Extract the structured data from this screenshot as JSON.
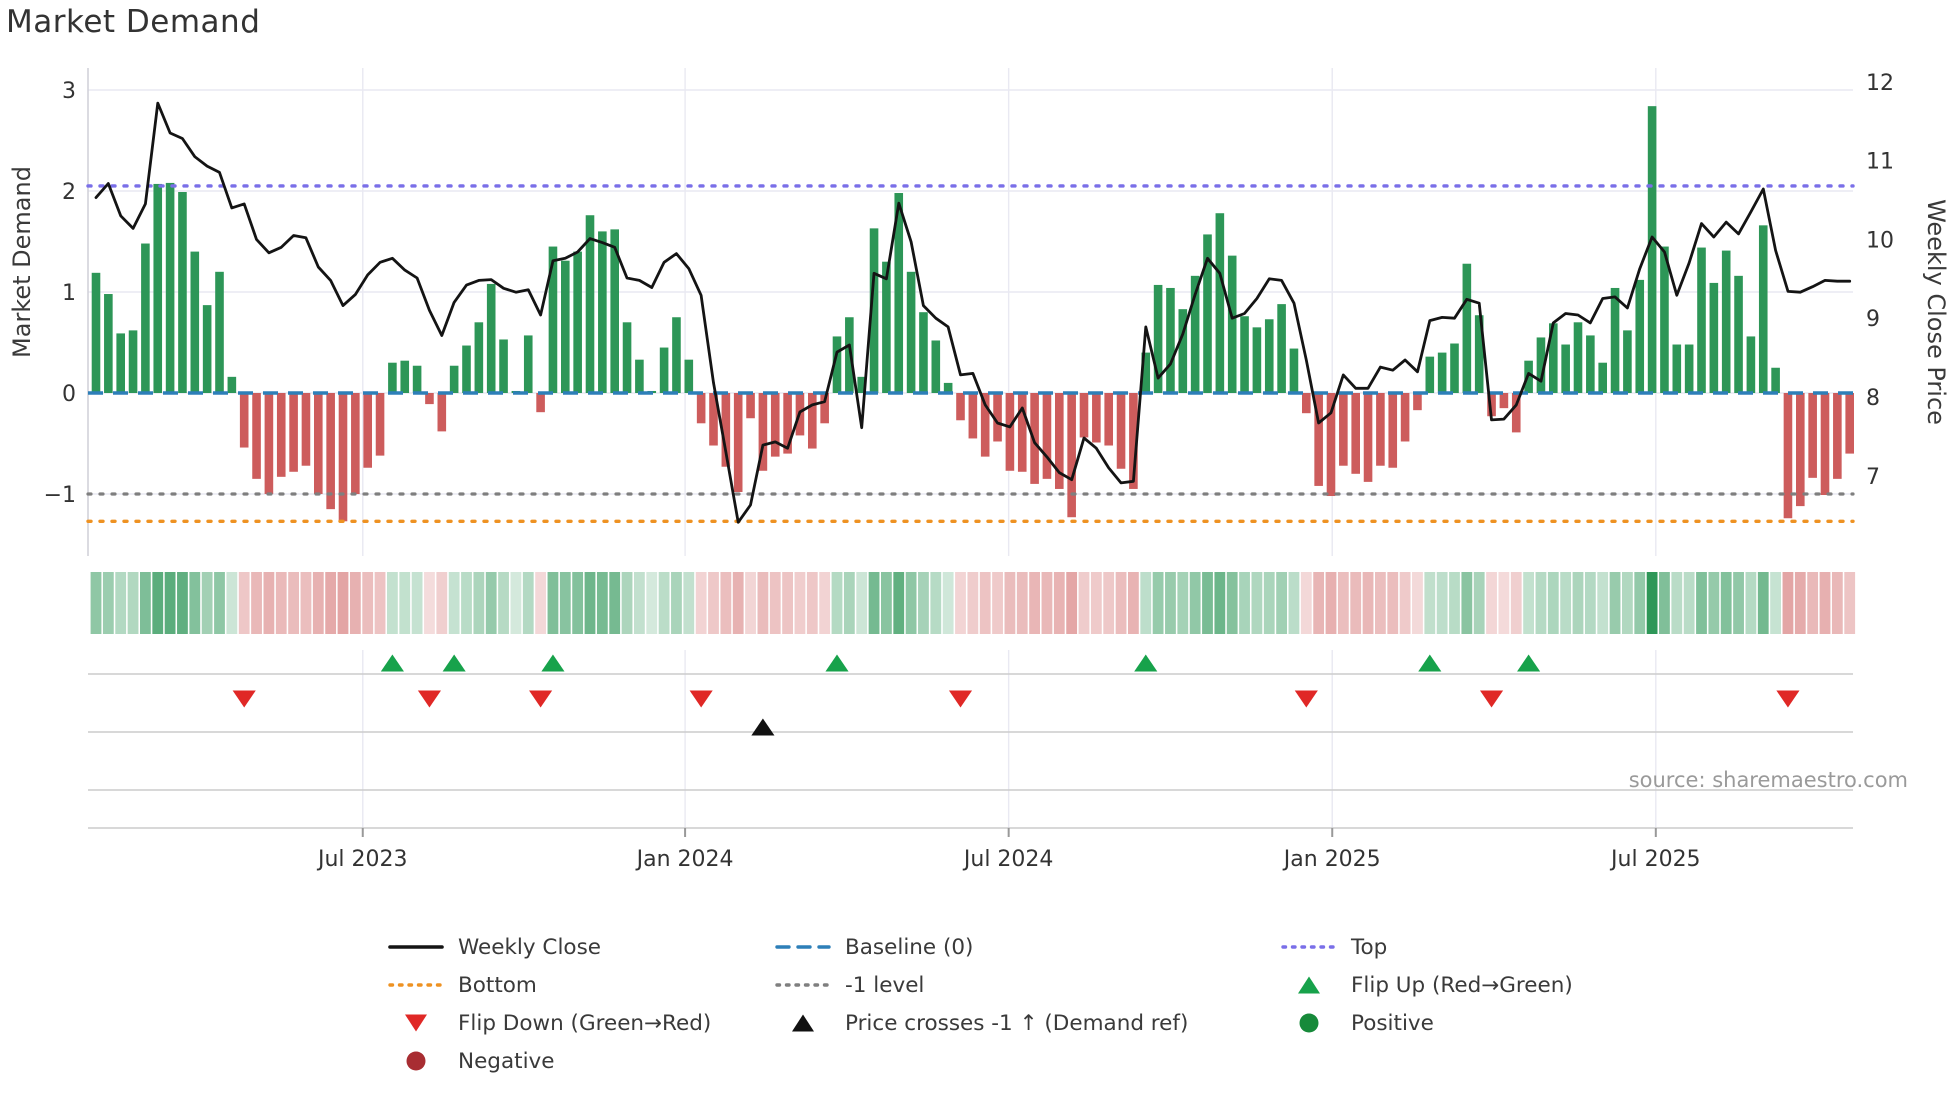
{
  "title": "Market Demand",
  "source": "source: sharemaestro.com",
  "left_axis": {
    "label": "Market Demand",
    "ticks": [
      "3",
      "2",
      "1",
      "0",
      "−1"
    ],
    "tick_values": [
      3,
      2,
      1,
      0,
      -1
    ]
  },
  "right_axis": {
    "label": "Weekly Close Price",
    "ticks": [
      "12",
      "11",
      "10",
      "9",
      "8",
      "7"
    ],
    "tick_values": [
      12,
      11,
      10,
      9,
      8,
      7
    ]
  },
  "x_axis": {
    "tick_labels": [
      "Jul 2023",
      "Jan 2024",
      "Jul 2024",
      "Jan 2025",
      "Jul 2025"
    ],
    "tick_weeks": [
      21.6,
      47.7,
      73.9,
      100.1,
      126.3
    ]
  },
  "colors": {
    "bar_positive": "#2d9657",
    "bar_negative": "#cd5c5c",
    "price_line": "#141414",
    "baseline": "#2d7fb8",
    "top": "#7a6fe8",
    "bottom": "#ee9222",
    "minus1": "#7f7f7f",
    "flip_up": "#17a24b",
    "flip_down": "#e02826",
    "cross": "#111111",
    "positive_dot": "#178a3a",
    "negative_dot": "#a82d32",
    "grid": "#e9e9f2",
    "spine": "#cfcfd7",
    "panel_line": "#cccccc",
    "text": "#333333",
    "muted": "#9a9a9a"
  },
  "chart_data": {
    "type": "bar+line",
    "title": "Market Demand",
    "ylabel_left": "Market Demand",
    "ylabel_right": "Weekly Close Price",
    "x_unit": "week",
    "n_weeks": 143,
    "ylim_demand": [
      -1.6,
      3.2
    ],
    "ylim_price": [
      6.0,
      12.2
    ],
    "baseline": 0,
    "top_level": 2.05,
    "bottom_level": -1.27,
    "minus1_level": -1,
    "grid": true,
    "legend_position": "bottom",
    "demand": [
      1.19,
      0.98,
      0.59,
      0.62,
      1.48,
      2.07,
      2.08,
      1.99,
      1.4,
      0.87,
      1.2,
      0.16,
      -0.54,
      -0.85,
      -1.0,
      -0.83,
      -0.78,
      -0.72,
      -1.0,
      -1.15,
      -1.27,
      -1.0,
      -0.74,
      -0.62,
      0.3,
      0.32,
      0.27,
      -0.11,
      -0.38,
      0.27,
      0.47,
      0.7,
      1.08,
      0.53,
      0.02,
      0.57,
      -0.19,
      1.45,
      1.31,
      1.4,
      1.76,
      1.6,
      1.62,
      0.7,
      0.33,
      0.02,
      0.45,
      0.75,
      0.33,
      -0.3,
      -0.52,
      -0.73,
      -0.98,
      -0.25,
      -0.77,
      -0.63,
      -0.6,
      -0.42,
      -0.55,
      -0.3,
      0.56,
      0.75,
      0.16,
      1.63,
      1.3,
      1.98,
      1.2,
      0.8,
      0.52,
      0.1,
      -0.27,
      -0.45,
      -0.63,
      -0.48,
      -0.77,
      -0.78,
      -0.9,
      -0.85,
      -0.95,
      -1.23,
      -0.44,
      -0.49,
      -0.52,
      -0.75,
      -0.95,
      0.4,
      1.07,
      1.04,
      0.83,
      1.16,
      1.57,
      1.78,
      1.36,
      0.76,
      0.65,
      0.73,
      0.88,
      0.44,
      -0.2,
      -0.92,
      -1.02,
      -0.72,
      -0.8,
      -0.88,
      -0.72,
      -0.74,
      -0.48,
      -0.17,
      0.36,
      0.4,
      0.49,
      1.28,
      0.77,
      -0.23,
      -0.15,
      -0.39,
      0.32,
      0.55,
      0.69,
      0.48,
      0.7,
      0.57,
      0.3,
      1.04,
      0.62,
      1.12,
      2.84,
      1.45,
      0.48,
      0.48,
      1.44,
      1.09,
      1.41,
      1.16,
      0.56,
      1.66,
      0.25,
      -1.24,
      -1.12,
      -0.84,
      -1.01,
      -0.85,
      -0.6
    ],
    "price": [
      10.53,
      10.71,
      10.3,
      10.14,
      10.45,
      11.73,
      11.35,
      11.28,
      11.05,
      10.93,
      10.85,
      10.4,
      10.45,
      10.0,
      9.83,
      9.9,
      10.05,
      10.02,
      9.65,
      9.48,
      9.16,
      9.3,
      9.55,
      9.71,
      9.76,
      9.61,
      9.51,
      9.1,
      8.78,
      9.2,
      9.42,
      9.48,
      9.49,
      9.38,
      9.33,
      9.36,
      9.04,
      9.73,
      9.76,
      9.84,
      10.01,
      9.96,
      9.9,
      9.51,
      9.48,
      9.39,
      9.71,
      9.82,
      9.63,
      9.29,
      8.18,
      7.3,
      6.41,
      6.63,
      7.39,
      7.43,
      7.35,
      7.81,
      7.9,
      7.94,
      8.57,
      8.66,
      7.61,
      9.57,
      9.5,
      10.46,
      9.97,
      9.16,
      9.0,
      8.89,
      8.28,
      8.3,
      7.9,
      7.67,
      7.62,
      7.86,
      7.42,
      7.24,
      7.04,
      6.95,
      7.48,
      7.35,
      7.1,
      6.91,
      6.93,
      8.89,
      8.24,
      8.42,
      8.8,
      9.3,
      9.76,
      9.57,
      9.0,
      9.06,
      9.25,
      9.5,
      9.48,
      9.19,
      8.47,
      7.67,
      7.8,
      8.28,
      8.11,
      8.11,
      8.38,
      8.34,
      8.47,
      8.32,
      8.97,
      9.01,
      9.0,
      9.24,
      9.19,
      7.71,
      7.72,
      7.9,
      8.3,
      8.2,
      8.94,
      9.06,
      9.04,
      8.94,
      9.25,
      9.27,
      9.13,
      9.63,
      10.03,
      9.84,
      9.29,
      9.7,
      10.2,
      10.03,
      10.22,
      10.07,
      10.35,
      10.64,
      9.86,
      9.34,
      9.33,
      9.4,
      9.48,
      9.47,
      9.47
    ],
    "flip_up_weeks": [
      24,
      29,
      37,
      60,
      85,
      108,
      116
    ],
    "flip_down_weeks": [
      12,
      27,
      36,
      49,
      70,
      98,
      113,
      137
    ],
    "price_cross_weeks": [
      54
    ]
  },
  "legend": {
    "cols": [
      {
        "items": [
          {
            "label": "Weekly Close",
            "type": "line",
            "color": "#141414"
          },
          {
            "label": "Bottom",
            "type": "dots",
            "color": "#ee9222"
          },
          {
            "label": "Flip Down (Green→Red)",
            "type": "tri-down",
            "color": "#e02826"
          },
          {
            "label": "Negative",
            "type": "circle",
            "color": "#a82d32"
          }
        ]
      },
      {
        "items": [
          {
            "label": "Baseline (0)",
            "type": "dash",
            "color": "#2d7fb8"
          },
          {
            "label": "-1 level",
            "type": "dots",
            "color": "#7f7f7f"
          },
          {
            "label": "Price crosses -1 ↑ (Demand ref)",
            "type": "tri-up",
            "color": "#111111"
          }
        ]
      },
      {
        "items": [
          {
            "label": "Top",
            "type": "dots",
            "color": "#7a6fe8"
          },
          {
            "label": "Flip Up (Red→Green)",
            "type": "tri-up",
            "color": "#17a24b"
          },
          {
            "label": "Positive",
            "type": "circle",
            "color": "#178a3a"
          }
        ]
      }
    ]
  }
}
